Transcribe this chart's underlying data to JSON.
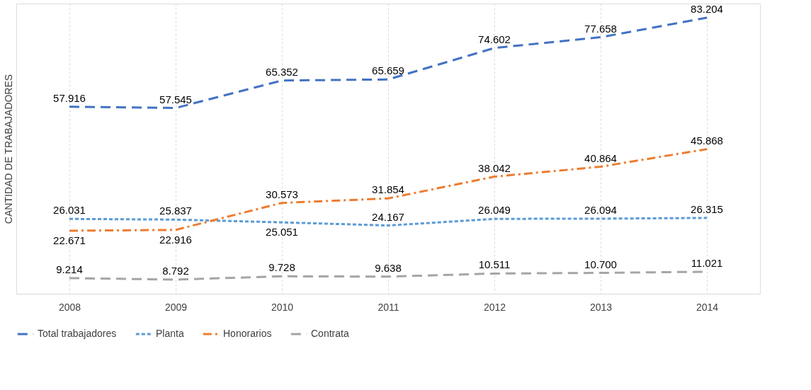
{
  "chart_data": {
    "type": "line",
    "ylabel": "CANTIDAD DE TRABAJADORES",
    "categories": [
      "2008",
      "2009",
      "2010",
      "2011",
      "2012",
      "2013",
      "2014"
    ],
    "series": [
      {
        "name": "Total trabajadores",
        "color": "#4472c4",
        "line_style": "dashed",
        "values": [
          57916,
          57545,
          65352,
          65659,
          74602,
          77658,
          83204
        ],
        "value_labels": [
          "57.916",
          "57.545",
          "65.352",
          "65.659",
          "74.602",
          "77.658",
          "83.204"
        ]
      },
      {
        "name": "Planta",
        "color": "#5b9bd5",
        "line_style": "dotted",
        "values": [
          26031,
          25837,
          25051,
          24167,
          26049,
          26094,
          26315
        ],
        "value_labels": [
          "26.031",
          "25.837",
          "25.051",
          "24.167",
          "26.049",
          "26.094",
          "26.315"
        ]
      },
      {
        "name": "Honorarios",
        "color": "#ed7d31",
        "line_style": "dashdot",
        "values": [
          22671,
          22916,
          30573,
          31854,
          38042,
          40864,
          45868
        ],
        "value_labels": [
          "22.671",
          "22.916",
          "30.573",
          "31.854",
          "38.042",
          "40.864",
          "45.868"
        ]
      },
      {
        "name": "Contrata",
        "color": "#a5a5a5",
        "line_style": "dashed",
        "values": [
          9214,
          8792,
          9728,
          9638,
          10511,
          10700,
          11021
        ],
        "value_labels": [
          "9.214",
          "8.792",
          "9.728",
          "9.638",
          "10.511",
          "10.700",
          "11.021"
        ]
      }
    ],
    "grid": "x",
    "legend": "bottom"
  }
}
